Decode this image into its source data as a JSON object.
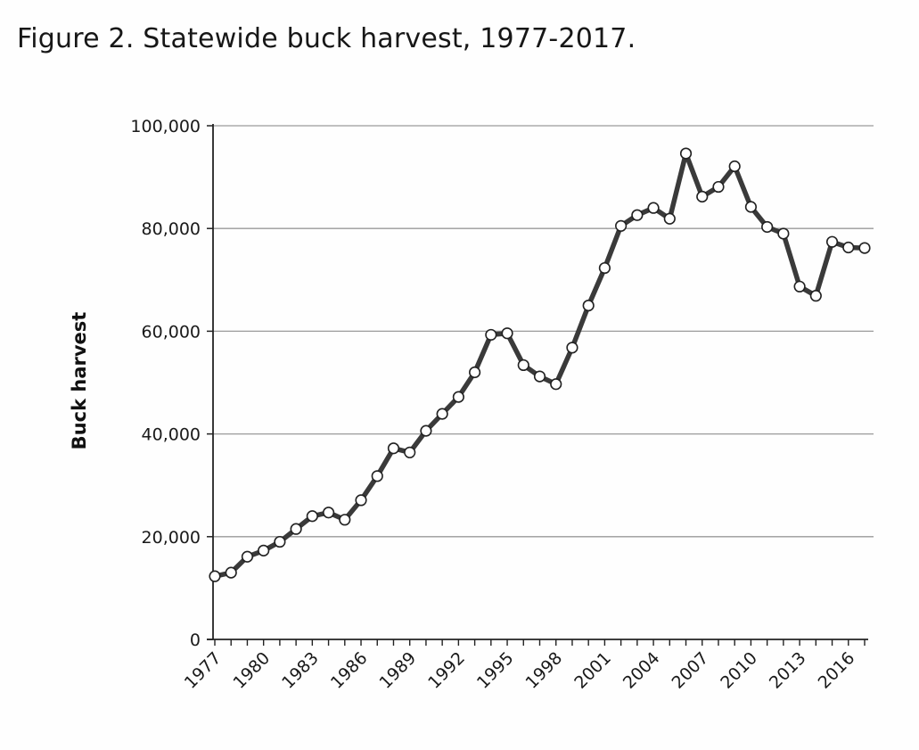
{
  "figure": {
    "title": "Figure 2. Statewide buck harvest, 1977-2017."
  },
  "chart_data": {
    "type": "line",
    "title": "Figure 2. Statewide buck harvest, 1977-2017.",
    "xlabel": "",
    "ylabel": "Buck harvest",
    "ylim": [
      0,
      100000
    ],
    "xlim": [
      1977,
      2017
    ],
    "grid": true,
    "legend": "none",
    "marker": "open-circle",
    "colors": {
      "line": "#3a3a3a",
      "marker_fill": "#ffffff",
      "marker_stroke": "#222222",
      "grid": "#9a9a9a",
      "axis": "#222222"
    },
    "y_ticks": [
      {
        "value": 0,
        "label": "0"
      },
      {
        "value": 20000,
        "label": "20,000"
      },
      {
        "value": 40000,
        "label": "40,000"
      },
      {
        "value": 60000,
        "label": "60,000"
      },
      {
        "value": 80000,
        "label": "80,000"
      },
      {
        "value": 100000,
        "label": "100,000"
      }
    ],
    "x_tick_labels": [
      "1977",
      "1980",
      "1983",
      "1986",
      "1989",
      "1992",
      "1995",
      "1998",
      "2001",
      "2004",
      "2007",
      "2010",
      "2013",
      "2016"
    ],
    "series": [
      {
        "x": [
          1977,
          1978,
          1979,
          1980,
          1981,
          1982,
          1983,
          1984,
          1985,
          1986,
          1987,
          1988,
          1989,
          1990,
          1991,
          1992,
          1993,
          1994,
          1995,
          1996,
          1997,
          1998,
          1999,
          2000,
          2001,
          2002,
          2003,
          2004,
          2005,
          2006,
          2007,
          2008,
          2009,
          2010,
          2011,
          2012,
          2013,
          2014,
          2015,
          2016,
          2017
        ],
        "y": [
          12300,
          13000,
          16100,
          17300,
          19000,
          21500,
          24000,
          24700,
          23300,
          27100,
          31800,
          37200,
          36400,
          40600,
          43900,
          47200,
          52000,
          59300,
          59600,
          53400,
          51200,
          49700,
          56800,
          65000,
          72300,
          80500,
          82600,
          84000,
          81900,
          94600,
          86200,
          88100,
          92100,
          84200,
          80300,
          79000,
          68700,
          66900,
          77400,
          76300,
          76200
        ]
      }
    ]
  }
}
